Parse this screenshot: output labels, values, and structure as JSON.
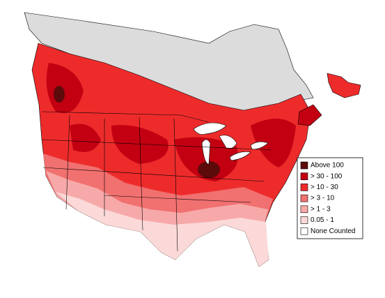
{
  "legend": {
    "items": [
      {
        "label": "Above 100",
        "color": "#5c0a0a"
      },
      {
        "label": "> 30 - 100",
        "color": "#c20012"
      },
      {
        "label": "> 10 - 30",
        "color": "#ee2b2b"
      },
      {
        "label": "> 3 - 10",
        "color": "#f17070"
      },
      {
        "label": "> 1 - 3",
        "color": "#f7a9a9"
      },
      {
        "label": "0.05 - 1",
        "color": "#fbd9d9"
      },
      {
        "label": "None Counted",
        "color": "#ffffff"
      }
    ]
  }
}
